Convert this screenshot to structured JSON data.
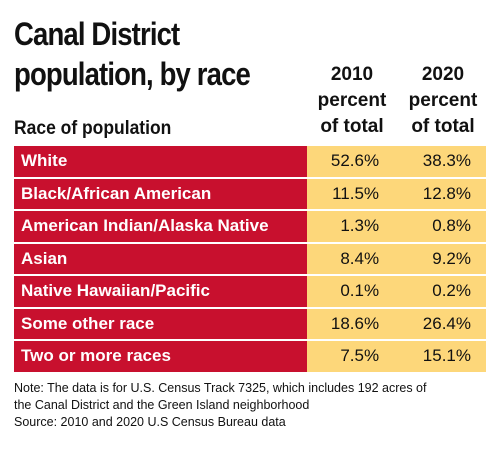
{
  "chart_data": {
    "type": "table",
    "title_lines": [
      "Canal District",
      "population, by race"
    ],
    "row_header": "Race of population",
    "columns": [
      {
        "lines": [
          "2010",
          "percent",
          "of total"
        ]
      },
      {
        "lines": [
          "2020",
          "percent",
          "of total"
        ]
      }
    ],
    "rows": [
      {
        "label": "White",
        "values": [
          "52.6%",
          "38.3%"
        ]
      },
      {
        "label": "Black/African American",
        "values": [
          "11.5%",
          "12.8%"
        ]
      },
      {
        "label": "American Indian/Alaska Native",
        "values": [
          "1.3%",
          "0.8%"
        ]
      },
      {
        "label": "Asian",
        "values": [
          "8.4%",
          "9.2%"
        ]
      },
      {
        "label": "Native Hawaiian/Pacific",
        "values": [
          "0.1%",
          "0.2%"
        ]
      },
      {
        "label": "Some other race",
        "values": [
          "18.6%",
          "26.4%"
        ]
      },
      {
        "label": "Two or more races",
        "values": [
          "7.5%",
          "15.1%"
        ]
      }
    ],
    "note_lines": [
      "Note: The data is for U.S. Census Track 7325, which includes 192 acres of",
      "the Canal District and the Green Island neighborhood"
    ],
    "source": "Source: 2010 and 2020 U.S Census Bureau data",
    "colors": {
      "label_bg": "#c8102e",
      "value_bg": "#fdd77a"
    }
  }
}
